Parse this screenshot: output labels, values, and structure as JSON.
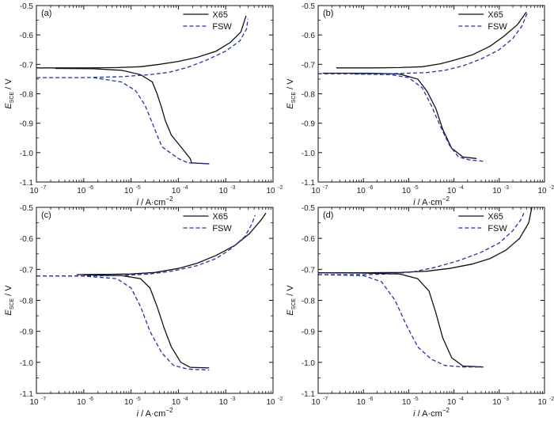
{
  "chart_data": [
    {
      "panel_label": "(a)",
      "type": "line",
      "xscale": "log",
      "xlim_exp": [
        -7,
        -2
      ],
      "ylim": [
        -1.1,
        -0.5
      ],
      "xlabel": "i / A·cm−2",
      "ylabel": "E_SCE / V",
      "series": [
        {
          "name": "X65",
          "style": "solid",
          "color": "#111111",
          "points": [
            [
              -7,
              -0.712
            ],
            [
              -6,
              -0.712
            ],
            [
              -5.3,
              -0.711
            ],
            [
              -4.8,
              -0.708
            ],
            [
              -4.4,
              -0.7
            ],
            [
              -4,
              -0.69
            ],
            [
              -3.6,
              -0.676
            ],
            [
              -3.2,
              -0.655
            ],
            [
              -2.9,
              -0.625
            ],
            [
              -2.68,
              -0.59
            ],
            [
              -2.6,
              -0.55
            ],
            [
              -2.57,
              -0.535
            ]
          ]
        },
        {
          "name": "X65",
          "style": "solid",
          "color": "#111111",
          "points": [
            [
              -6.6,
              -0.714
            ],
            [
              -5.8,
              -0.715
            ],
            [
              -5.2,
              -0.72
            ],
            [
              -4.8,
              -0.735
            ],
            [
              -4.55,
              -0.76
            ],
            [
              -4.45,
              -0.8
            ],
            [
              -4.35,
              -0.85
            ],
            [
              -4.28,
              -0.89
            ],
            [
              -4.15,
              -0.94
            ],
            [
              -3.9,
              -0.99
            ],
            [
              -3.75,
              -1.02
            ],
            [
              -3.72,
              -1.035
            ],
            [
              -3.35,
              -1.038
            ]
          ]
        },
        {
          "name": "FSW",
          "style": "dashed",
          "color": "#2233aa",
          "points": [
            [
              -7,
              -0.745
            ],
            [
              -6,
              -0.745
            ],
            [
              -5.2,
              -0.742
            ],
            [
              -4.6,
              -0.735
            ],
            [
              -4.2,
              -0.727
            ],
            [
              -3.8,
              -0.71
            ],
            [
              -3.4,
              -0.685
            ],
            [
              -3.0,
              -0.655
            ],
            [
              -2.7,
              -0.62
            ],
            [
              -2.56,
              -0.58
            ],
            [
              -2.53,
              -0.545
            ]
          ]
        },
        {
          "name": "FSW",
          "style": "dashed",
          "color": "#2233aa",
          "points": [
            [
              -5.8,
              -0.745
            ],
            [
              -5.2,
              -0.76
            ],
            [
              -4.9,
              -0.79
            ],
            [
              -4.7,
              -0.84
            ],
            [
              -4.5,
              -0.92
            ],
            [
              -4.35,
              -0.98
            ],
            [
              -4.0,
              -1.02
            ],
            [
              -3.8,
              -1.035
            ],
            [
              -3.35,
              -1.038
            ]
          ]
        }
      ]
    },
    {
      "panel_label": "(b)",
      "type": "line",
      "xscale": "log",
      "xlim_exp": [
        -7,
        -2
      ],
      "ylim": [
        -1.1,
        -0.5
      ],
      "xlabel": "i / A·cm−2",
      "ylabel": "E_SCE / V",
      "series": [
        {
          "name": "X65",
          "style": "solid",
          "color": "#111111",
          "points": [
            [
              -6.6,
              -0.712
            ],
            [
              -5.8,
              -0.712
            ],
            [
              -5.2,
              -0.711
            ],
            [
              -4.7,
              -0.708
            ],
            [
              -4.3,
              -0.698
            ],
            [
              -4.0,
              -0.686
            ],
            [
              -3.6,
              -0.668
            ],
            [
              -3.2,
              -0.638
            ],
            [
              -2.9,
              -0.605
            ],
            [
              -2.6,
              -0.565
            ],
            [
              -2.4,
              -0.522
            ]
          ]
        },
        {
          "name": "X65",
          "style": "solid",
          "color": "#111111",
          "points": [
            [
              -6.9,
              -0.73
            ],
            [
              -5.8,
              -0.73
            ],
            [
              -5.2,
              -0.733
            ],
            [
              -4.8,
              -0.75
            ],
            [
              -4.6,
              -0.79
            ],
            [
              -4.4,
              -0.85
            ],
            [
              -4.25,
              -0.92
            ],
            [
              -4.05,
              -0.985
            ],
            [
              -3.8,
              -1.015
            ],
            [
              -3.5,
              -1.02
            ]
          ]
        },
        {
          "name": "FSW",
          "style": "dashed",
          "color": "#2233aa",
          "points": [
            [
              -7,
              -0.732
            ],
            [
              -6,
              -0.732
            ],
            [
              -5.2,
              -0.731
            ],
            [
              -4.6,
              -0.728
            ],
            [
              -4.2,
              -0.72
            ],
            [
              -3.8,
              -0.705
            ],
            [
              -3.4,
              -0.682
            ],
            [
              -3.0,
              -0.65
            ],
            [
              -2.7,
              -0.612
            ],
            [
              -2.5,
              -0.57
            ],
            [
              -2.38,
              -0.525
            ]
          ]
        },
        {
          "name": "FSW",
          "style": "dashed",
          "color": "#2233aa",
          "points": [
            [
              -6.2,
              -0.733
            ],
            [
              -5.4,
              -0.735
            ],
            [
              -5.0,
              -0.745
            ],
            [
              -4.7,
              -0.78
            ],
            [
              -4.5,
              -0.84
            ],
            [
              -4.3,
              -0.91
            ],
            [
              -4.1,
              -0.975
            ],
            [
              -3.9,
              -1.015
            ],
            [
              -3.65,
              -1.025
            ],
            [
              -3.3,
              -1.03
            ]
          ]
        }
      ]
    },
    {
      "panel_label": "(c)",
      "type": "line",
      "xscale": "log",
      "xlim_exp": [
        -7,
        -2
      ],
      "ylim": [
        -1.1,
        -0.5
      ],
      "xlabel": "i / A·cm−2",
      "ylabel": "E_SCE / V",
      "series": [
        {
          "name": "X65",
          "style": "solid",
          "color": "#111111",
          "points": [
            [
              -6.15,
              -0.717
            ],
            [
              -5.5,
              -0.716
            ],
            [
              -5.0,
              -0.715
            ],
            [
              -4.5,
              -0.71
            ],
            [
              -4.0,
              -0.697
            ],
            [
              -3.6,
              -0.68
            ],
            [
              -3.2,
              -0.655
            ],
            [
              -2.8,
              -0.622
            ],
            [
              -2.5,
              -0.585
            ],
            [
              -2.25,
              -0.54
            ],
            [
              -2.15,
              -0.518
            ]
          ]
        },
        {
          "name": "X65",
          "style": "solid",
          "color": "#111111",
          "points": [
            [
              -6.0,
              -0.718
            ],
            [
              -5.2,
              -0.72
            ],
            [
              -4.8,
              -0.73
            ],
            [
              -4.6,
              -0.76
            ],
            [
              -4.45,
              -0.82
            ],
            [
              -4.3,
              -0.89
            ],
            [
              -4.15,
              -0.95
            ],
            [
              -3.95,
              -1.0
            ],
            [
              -3.75,
              -1.016
            ],
            [
              -3.35,
              -1.018
            ]
          ]
        },
        {
          "name": "FSW",
          "style": "dashed",
          "color": "#2233aa",
          "points": [
            [
              -7,
              -0.721
            ],
            [
              -6,
              -0.721
            ],
            [
              -5.2,
              -0.72
            ],
            [
              -4.6,
              -0.715
            ],
            [
              -4.1,
              -0.705
            ],
            [
              -3.6,
              -0.688
            ],
            [
              -3.2,
              -0.665
            ],
            [
              -2.9,
              -0.635
            ],
            [
              -2.6,
              -0.595
            ],
            [
              -2.45,
              -0.555
            ],
            [
              -2.38,
              -0.525
            ]
          ]
        },
        {
          "name": "FSW",
          "style": "dashed",
          "color": "#2233aa",
          "points": [
            [
              -7,
              -0.721
            ],
            [
              -6,
              -0.722
            ],
            [
              -5.3,
              -0.73
            ],
            [
              -5.0,
              -0.76
            ],
            [
              -4.8,
              -0.82
            ],
            [
              -4.6,
              -0.9
            ],
            [
              -4.35,
              -0.97
            ],
            [
              -4.1,
              -1.01
            ],
            [
              -3.8,
              -1.022
            ],
            [
              -3.35,
              -1.025
            ]
          ]
        }
      ]
    },
    {
      "panel_label": "(d)",
      "type": "line",
      "xscale": "log",
      "xlim_exp": [
        -7,
        -2
      ],
      "ylim": [
        -1.1,
        -0.5
      ],
      "xlabel": "i / A·cm−2",
      "ylabel": "E_SCE / V",
      "series": [
        {
          "name": "X65",
          "style": "solid",
          "color": "#111111",
          "points": [
            [
              -7,
              -0.711
            ],
            [
              -6,
              -0.711
            ],
            [
              -5.2,
              -0.71
            ],
            [
              -4.6,
              -0.706
            ],
            [
              -4.1,
              -0.697
            ],
            [
              -3.6,
              -0.683
            ],
            [
              -3.2,
              -0.665
            ],
            [
              -2.85,
              -0.638
            ],
            [
              -2.55,
              -0.6
            ],
            [
              -2.35,
              -0.55
            ],
            [
              -2.28,
              -0.5
            ]
          ]
        },
        {
          "name": "X65",
          "style": "solid",
          "color": "#111111",
          "points": [
            [
              -7,
              -0.711
            ],
            [
              -6,
              -0.712
            ],
            [
              -5.2,
              -0.715
            ],
            [
              -4.8,
              -0.73
            ],
            [
              -4.55,
              -0.77
            ],
            [
              -4.4,
              -0.84
            ],
            [
              -4.25,
              -0.92
            ],
            [
              -4.05,
              -0.985
            ],
            [
              -3.8,
              -1.012
            ],
            [
              -3.35,
              -1.015
            ]
          ]
        },
        {
          "name": "FSW",
          "style": "dashed",
          "color": "#2233aa",
          "points": [
            [
              -7,
              -0.717
            ],
            [
              -6,
              -0.717
            ],
            [
              -5.4,
              -0.715
            ],
            [
              -4.9,
              -0.708
            ],
            [
              -4.4,
              -0.693
            ],
            [
              -3.9,
              -0.672
            ],
            [
              -3.4,
              -0.645
            ],
            [
              -3.0,
              -0.615
            ],
            [
              -2.7,
              -0.575
            ],
            [
              -2.5,
              -0.535
            ],
            [
              -2.45,
              -0.515
            ]
          ]
        },
        {
          "name": "FSW",
          "style": "dashed",
          "color": "#2233aa",
          "points": [
            [
              -7,
              -0.717
            ],
            [
              -6,
              -0.72
            ],
            [
              -5.6,
              -0.74
            ],
            [
              -5.3,
              -0.8
            ],
            [
              -5.05,
              -0.88
            ],
            [
              -4.8,
              -0.95
            ],
            [
              -4.5,
              -0.99
            ],
            [
              -4.2,
              -1.01
            ],
            [
              -3.8,
              -1.015
            ],
            [
              -3.35,
              -1.015
            ]
          ]
        }
      ]
    }
  ]
}
